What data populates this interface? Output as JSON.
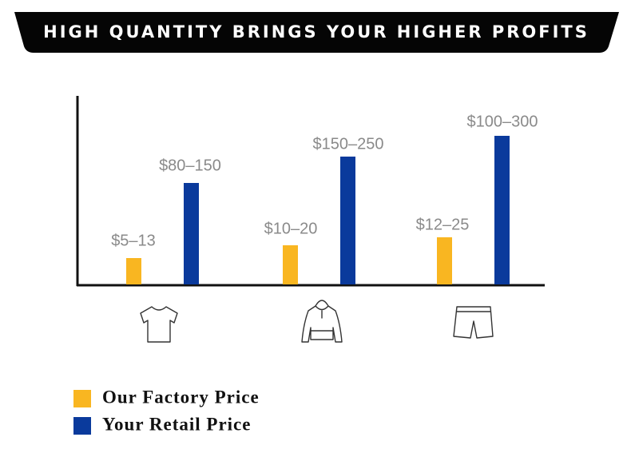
{
  "header": {
    "title": "HIGH QUANTITY BRINGS YOUR HIGHER PROFITS"
  },
  "groups": [
    {
      "factory": "$5–13",
      "retail": "$80–150"
    },
    {
      "factory": "$10–20",
      "retail": "$150–250"
    },
    {
      "factory": "$12–25",
      "retail": "$100–300"
    }
  ],
  "legend": [
    "Our Factory Price",
    "Your Retail Price"
  ]
}
